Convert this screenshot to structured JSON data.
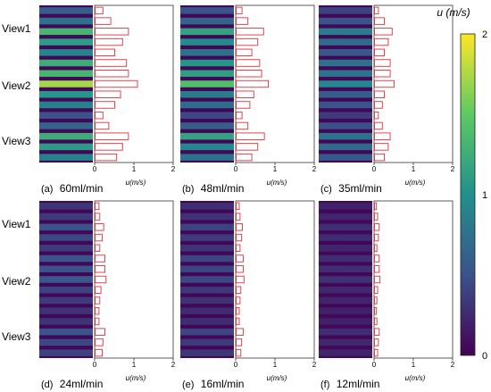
{
  "colorbar": {
    "label": "u (m/s)",
    "ticks": [
      "2",
      "1",
      "0"
    ],
    "min": 0,
    "max": 2,
    "colors": [
      "#440154",
      "#3b528b",
      "#21908d",
      "#5dc963",
      "#fde725"
    ]
  },
  "view_labels": [
    "View1",
    "View2",
    "View3"
  ],
  "bar_colors": {
    "edge": "#e0303a",
    "fill": "#ffffff"
  },
  "chart_data": [
    {
      "type": "bar",
      "orientation": "horizontal",
      "panel": "(a)",
      "flow_rate": "60ml/min",
      "xlabel": "u(m/s)",
      "xlim": [
        0,
        2
      ],
      "x_ticks": [
        "0",
        "1",
        "2"
      ],
      "values": [
        0.2,
        0.4,
        0.85,
        0.7,
        0.5,
        0.8,
        0.85,
        1.08,
        0.65,
        0.5,
        0.2,
        0.35,
        0.85,
        0.7,
        0.55
      ],
      "image_intensity": [
        0.3,
        0.38,
        0.66,
        0.55,
        0.45,
        0.62,
        0.66,
        0.86,
        0.52,
        0.44,
        0.26,
        0.33,
        0.62,
        0.54,
        0.44
      ]
    },
    {
      "type": "bar",
      "orientation": "horizontal",
      "panel": "(b)",
      "flow_rate": "48ml/min",
      "xlabel": "u(m/s)",
      "xlim": [
        0,
        2
      ],
      "x_ticks": [
        "0",
        "1",
        "2"
      ],
      "values": [
        0.15,
        0.3,
        0.7,
        0.55,
        0.4,
        0.6,
        0.65,
        0.82,
        0.45,
        0.35,
        0.15,
        0.3,
        0.72,
        0.55,
        0.4
      ],
      "image_intensity": [
        0.26,
        0.32,
        0.58,
        0.48,
        0.38,
        0.52,
        0.56,
        0.7,
        0.42,
        0.36,
        0.22,
        0.3,
        0.58,
        0.46,
        0.38
      ]
    },
    {
      "type": "bar",
      "orientation": "horizontal",
      "panel": "(c)",
      "flow_rate": "35ml/min",
      "xlabel": "u(m/s)",
      "xlim": [
        0,
        2
      ],
      "x_ticks": [
        "0",
        "1",
        "2"
      ],
      "values": [
        0.1,
        0.25,
        0.45,
        0.35,
        0.25,
        0.4,
        0.4,
        0.5,
        0.25,
        0.2,
        0.1,
        0.2,
        0.4,
        0.35,
        0.25
      ],
      "image_intensity": [
        0.2,
        0.26,
        0.42,
        0.36,
        0.28,
        0.38,
        0.38,
        0.46,
        0.3,
        0.26,
        0.18,
        0.24,
        0.38,
        0.34,
        0.28
      ]
    },
    {
      "type": "bar",
      "orientation": "horizontal",
      "panel": "(d)",
      "flow_rate": "24ml/min",
      "xlabel": "u(m/s)",
      "xlim": [
        0,
        2
      ],
      "x_ticks": [
        "0",
        "1",
        "2"
      ],
      "values": [
        0.1,
        0.12,
        0.22,
        0.18,
        0.12,
        0.25,
        0.25,
        0.28,
        0.15,
        0.12,
        0.1,
        0.1,
        0.25,
        0.2,
        0.18
      ],
      "image_intensity": [
        0.16,
        0.18,
        0.26,
        0.22,
        0.18,
        0.26,
        0.26,
        0.28,
        0.2,
        0.18,
        0.15,
        0.16,
        0.26,
        0.22,
        0.2
      ]
    },
    {
      "type": "bar",
      "orientation": "horizontal",
      "panel": "(e)",
      "flow_rate": "16ml/min",
      "xlabel": "u(m/s)",
      "xlim": [
        0,
        2
      ],
      "x_ticks": [
        "0",
        "1",
        "2"
      ],
      "values": [
        0.08,
        0.1,
        0.16,
        0.14,
        0.1,
        0.18,
        0.18,
        0.2,
        0.12,
        0.1,
        0.08,
        0.08,
        0.18,
        0.14,
        0.12
      ],
      "image_intensity": [
        0.14,
        0.15,
        0.2,
        0.18,
        0.15,
        0.21,
        0.21,
        0.22,
        0.17,
        0.15,
        0.13,
        0.14,
        0.21,
        0.18,
        0.16
      ]
    },
    {
      "type": "bar",
      "orientation": "horizontal",
      "panel": "(f)",
      "flow_rate": "12ml/min",
      "xlabel": "u(m/s)",
      "xlim": [
        0,
        2
      ],
      "x_ticks": [
        "0",
        "1",
        "2"
      ],
      "values": [
        0.05,
        0.08,
        0.12,
        0.1,
        0.06,
        0.12,
        0.12,
        0.14,
        0.08,
        0.06,
        0.05,
        0.06,
        0.12,
        0.1,
        0.08
      ],
      "image_intensity": [
        0.1,
        0.11,
        0.14,
        0.13,
        0.11,
        0.14,
        0.14,
        0.15,
        0.12,
        0.11,
        0.1,
        0.1,
        0.14,
        0.12,
        0.11
      ]
    }
  ]
}
